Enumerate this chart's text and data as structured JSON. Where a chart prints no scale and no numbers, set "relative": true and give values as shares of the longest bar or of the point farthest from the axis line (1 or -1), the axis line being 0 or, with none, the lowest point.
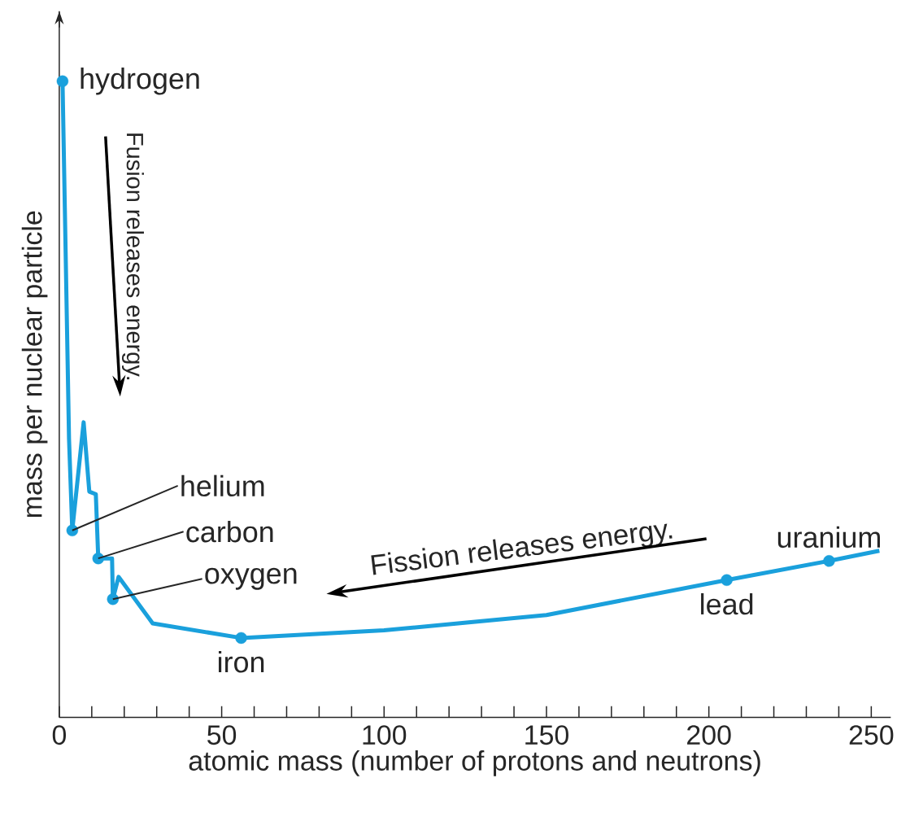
{
  "chart_data": {
    "type": "line",
    "relative": true,
    "xlabel": "atomic mass (number of protons and neutrons)",
    "ylabel": "mass per nuclear particle",
    "xlim": [
      0,
      256
    ],
    "xticks": [
      0,
      {
        "value": 10,
        "label": null
      },
      {
        "value": 20,
        "label": null
      },
      {
        "value": 30,
        "label": null
      },
      {
        "value": 40,
        "label": null
      },
      50,
      {
        "value": 60,
        "label": null
      },
      {
        "value": 70,
        "label": null
      },
      {
        "value": 80,
        "label": null
      },
      {
        "value": 90,
        "label": null
      },
      100,
      {
        "value": 110,
        "label": null
      },
      {
        "value": 120,
        "label": null
      },
      {
        "value": 130,
        "label": null
      },
      {
        "value": 140,
        "label": null
      },
      150,
      {
        "value": 160,
        "label": null
      },
      {
        "value": 170,
        "label": null
      },
      {
        "value": 180,
        "label": null
      },
      {
        "value": 190,
        "label": null
      },
      200,
      {
        "value": 210,
        "label": null
      },
      {
        "value": 220,
        "label": null
      },
      {
        "value": 230,
        "label": null
      },
      {
        "value": 240,
        "label": null
      },
      250
    ],
    "series": [
      {
        "color": "#1aa0dc",
        "x": [
          1,
          3,
          4,
          7.5,
          9.25,
          11.25,
          12,
          16.25,
          16.5,
          18.25,
          28.75,
          56,
          100,
          150,
          205.5,
          237,
          252.5
        ],
        "values": [
          1.0,
          0.438,
          0.294,
          0.464,
          0.355,
          0.351,
          0.25,
          0.25,
          0.186,
          0.221,
          0.148,
          0.125,
          0.137,
          0.161,
          0.216,
          0.246,
          0.262
        ]
      },
      {
        "type": "scatter",
        "color": "#1aa0dc",
        "marker": "circle",
        "x": [
          1,
          4,
          12,
          16.5,
          56,
          205.5,
          237
        ],
        "values": [
          1.0,
          0.294,
          0.25,
          0.186,
          0.125,
          0.216,
          0.246
        ]
      }
    ],
    "annotations": [
      {
        "text": "hydrogen",
        "x": 1,
        "y": 1.0
      },
      {
        "text": "helium",
        "x": 4,
        "y": 0.294
      },
      {
        "text": "carbon",
        "x": 12,
        "y": 0.25
      },
      {
        "text": "oxygen",
        "x": 16.5,
        "y": 0.186
      },
      {
        "text": "iron",
        "x": 56,
        "y": 0.125
      },
      {
        "text": "lead",
        "x": 205.5,
        "y": 0.216
      },
      {
        "text": "uranium",
        "x": 237,
        "y": 0.246
      },
      "Fusion releases energy.",
      "Fission releases energy."
    ]
  }
}
